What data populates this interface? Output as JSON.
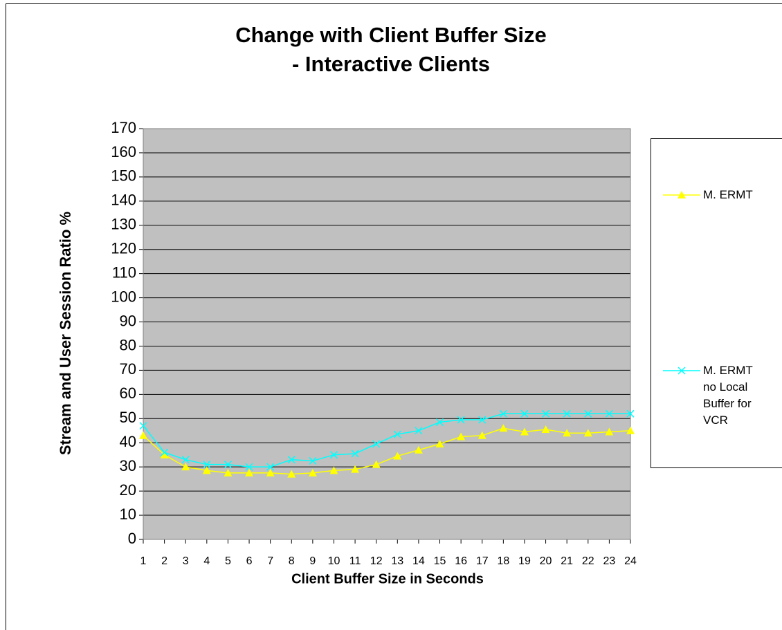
{
  "chart_data": {
    "type": "line",
    "title": "Change with Client Buffer Size\n- Interactive Clients",
    "x_label": "Client Buffer Size in Seconds",
    "y_label": "Stream and User Session Ratio %",
    "x": [
      1,
      2,
      3,
      4,
      5,
      6,
      7,
      8,
      9,
      10,
      11,
      12,
      13,
      14,
      15,
      16,
      17,
      18,
      19,
      20,
      21,
      22,
      23,
      24
    ],
    "xlim": [
      1,
      24
    ],
    "xticks": [
      1,
      2,
      3,
      4,
      5,
      6,
      7,
      8,
      9,
      10,
      11,
      12,
      13,
      14,
      15,
      16,
      17,
      18,
      19,
      20,
      21,
      22,
      23,
      24
    ],
    "ylim": [
      0,
      170
    ],
    "yticks": [
      0,
      10,
      20,
      30,
      40,
      50,
      60,
      70,
      80,
      90,
      100,
      110,
      120,
      130,
      140,
      150,
      160,
      170
    ],
    "grid": true,
    "legend": "right",
    "series": [
      {
        "name": "M. ERMT",
        "color": "#ffff00",
        "marker": "triangle",
        "values": [
          43,
          35,
          30,
          28.5,
          27.5,
          27.5,
          27.5,
          27,
          27.5,
          28.5,
          29,
          31,
          34.5,
          37,
          39.5,
          42.5,
          43,
          46,
          44.5,
          45.5,
          44,
          44,
          44.5,
          45
        ]
      },
      {
        "name": "M. ERMT\nno Local\nBuffer for\nVCR",
        "color": "#00ffff",
        "marker": "x",
        "values": [
          47,
          36,
          33,
          31,
          31,
          30,
          30,
          33,
          32.5,
          35,
          35.5,
          39.5,
          43.5,
          45,
          48.5,
          49.5,
          49.5,
          52,
          52,
          52,
          52,
          52,
          52,
          52
        ]
      }
    ]
  }
}
